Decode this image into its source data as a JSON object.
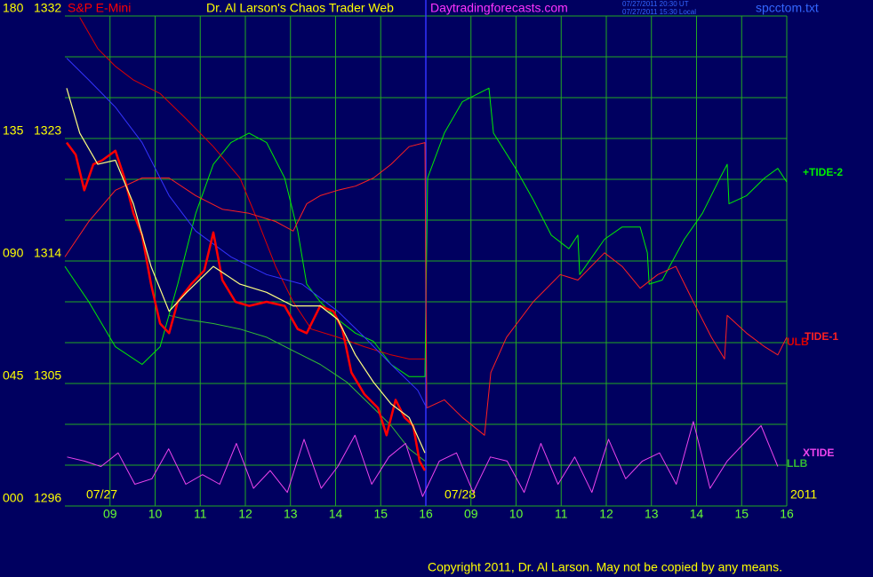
{
  "chart_data": {
    "type": "line",
    "title": "Dr. Al Larson's Chaos Trader Web",
    "source": "Daytradingforecasts.com",
    "timestamps": [
      "07/27/2011 20:30 UT",
      "07/27/2011 15:30 Local"
    ],
    "file": "spcctom.txt",
    "copyright": "Copyright 2011, Dr. Al Larson. May not be copied by any means.",
    "date_labels": [
      "07/27",
      "07/28",
      "2011"
    ],
    "xlim": [
      0,
      16
    ],
    "xticks": [
      {
        "value": 1,
        "label": "09"
      },
      {
        "value": 2,
        "label": "10"
      },
      {
        "value": 3,
        "label": "11"
      },
      {
        "value": 4,
        "label": "12"
      },
      {
        "value": 5,
        "label": "13"
      },
      {
        "value": 6,
        "label": "14"
      },
      {
        "value": 7,
        "label": "15"
      },
      {
        "value": 8,
        "label": "16"
      },
      {
        "value": 9,
        "label": "09"
      },
      10,
      11,
      12,
      13,
      14,
      15,
      16
    ],
    "session_break": 8,
    "ylim": [
      1296,
      1332
    ],
    "yticks": [
      1296,
      1305,
      1314,
      1323,
      1332
    ],
    "ygrid": [
      1296,
      1299,
      1302,
      1305,
      1308,
      1311,
      1314,
      1317,
      1320,
      1323,
      1326,
      1329,
      1332
    ],
    "y2lim": [
      0,
      180
    ],
    "y2ticks": [
      {
        "value": 0,
        "label": "000"
      },
      {
        "value": 45,
        "label": "045"
      },
      {
        "value": 90,
        "label": "090"
      },
      135,
      180
    ],
    "grid": true,
    "grid_color": "#22aa22",
    "series": [
      {
        "name": "+TIDE-2",
        "color": "#00ee00",
        "x": [
          0,
          0.53,
          1.12,
          1.71,
          2.11,
          2.5,
          2.9,
          3.29,
          3.68,
          4.08,
          4.47,
          4.87,
          5.16,
          5.36,
          5.66,
          6.05,
          6.44,
          6.84,
          7.23,
          7.63,
          7.98,
          8.04,
          8.41,
          8.81,
          9.4,
          9.5,
          9.99,
          10.38,
          10.78,
          11.17,
          11.37,
          11.41,
          11.96,
          12.35,
          12.75,
          12.91,
          12.95,
          13.24,
          13.73,
          14.13,
          14.52,
          14.68,
          14.72,
          15.11,
          15.51,
          15.8,
          16.0
        ],
        "values": [
          1313.6,
          1311.0,
          1307.7,
          1306.4,
          1307.7,
          1312.3,
          1317.5,
          1321.1,
          1322.7,
          1323.4,
          1322.7,
          1320.1,
          1316.2,
          1312.3,
          1311.0,
          1309.7,
          1308.7,
          1308.1,
          1306.4,
          1305.5,
          1305.5,
          1320.1,
          1323.4,
          1325.7,
          1326.7,
          1323.4,
          1320.8,
          1318.5,
          1315.9,
          1314.9,
          1315.9,
          1313.0,
          1315.6,
          1316.5,
          1316.5,
          1314.6,
          1312.3,
          1312.6,
          1315.6,
          1317.5,
          1320.1,
          1321.1,
          1318.2,
          1318.8,
          1320.1,
          1320.8,
          1319.8
        ]
      },
      {
        "name": "LLB",
        "color": "#33bb33",
        "x": [
          2.31,
          2.7,
          3.29,
          3.88,
          4.47,
          5.06,
          5.66,
          6.25,
          6.84,
          7.23,
          7.63,
          7.98
        ],
        "values": [
          1310.0,
          1309.7,
          1309.4,
          1309.0,
          1308.4,
          1307.4,
          1306.4,
          1305.1,
          1303.2,
          1301.9,
          1300.2,
          1299.3
        ]
      },
      {
        "name": "ULB",
        "color": "#dd0000",
        "x": [
          0.33,
          0.73,
          1.12,
          1.52,
          2.11,
          2.7,
          3.29,
          3.88,
          4.28,
          4.67,
          5.06,
          5.46,
          6.05,
          6.64,
          7.23,
          7.63,
          7.98
        ],
        "values": [
          1331.9,
          1329.6,
          1328.3,
          1327.3,
          1326.3,
          1324.4,
          1322.4,
          1320.1,
          1316.9,
          1313.6,
          1311.0,
          1309.0,
          1308.4,
          1307.7,
          1307.1,
          1306.8,
          1306.8
        ]
      },
      {
        "name": "TIDE-1",
        "color": "#ff2020",
        "x": [
          0,
          0.53,
          1.12,
          1.71,
          2.31,
          2.9,
          3.49,
          4.08,
          4.67,
          5.06,
          5.36,
          5.66,
          6.05,
          6.44,
          6.84,
          7.23,
          7.63,
          7.98,
          8.02,
          8.41,
          8.81,
          9.3,
          9.44,
          9.79,
          10.38,
          10.98,
          11.37,
          11.96,
          12.35,
          12.75,
          13.14,
          13.54,
          13.93,
          14.33,
          14.62,
          14.68,
          15.11,
          15.51,
          15.8,
          16.0
        ],
        "values": [
          1314.3,
          1316.9,
          1319.2,
          1320.1,
          1320.1,
          1318.8,
          1317.8,
          1317.5,
          1316.9,
          1316.2,
          1318.2,
          1318.8,
          1319.2,
          1319.5,
          1320.1,
          1321.1,
          1322.4,
          1322.7,
          1303.2,
          1303.8,
          1302.5,
          1301.2,
          1305.8,
          1308.4,
          1311.0,
          1313.0,
          1312.6,
          1314.6,
          1313.6,
          1312.0,
          1313.0,
          1313.6,
          1311.0,
          1308.4,
          1306.8,
          1310.0,
          1308.7,
          1307.7,
          1307.1,
          1308.4
        ]
      },
      {
        "name": "XTIDE",
        "color": "#ee44ee",
        "x": [
          0.05,
          0.43,
          0.8,
          1.18,
          1.55,
          1.93,
          2.3,
          2.68,
          3.05,
          3.43,
          3.8,
          4.18,
          4.55,
          4.93,
          5.3,
          5.68,
          6.05,
          6.43,
          6.8,
          7.18,
          7.55,
          7.93,
          8.3,
          8.68,
          9.05,
          9.43,
          9.8,
          10.18,
          10.55,
          10.93,
          11.3,
          11.68,
          12.05,
          12.43,
          12.8,
          13.18,
          13.55,
          13.93,
          14.3,
          14.68,
          15.05,
          15.43,
          15.8
        ],
        "values": [
          1299.6,
          1299.3,
          1298.9,
          1299.9,
          1297.6,
          1298.0,
          1300.2,
          1297.6,
          1298.3,
          1297.6,
          1300.6,
          1297.3,
          1298.6,
          1297.0,
          1300.9,
          1297.3,
          1298.9,
          1301.2,
          1297.6,
          1299.6,
          1300.6,
          1296.7,
          1299.3,
          1299.9,
          1297.0,
          1299.6,
          1299.3,
          1297.0,
          1300.6,
          1297.6,
          1299.6,
          1297.0,
          1300.9,
          1298.0,
          1299.3,
          1299.9,
          1297.6,
          1302.2,
          1297.3,
          1299.3,
          1300.6,
          1301.9,
          1298.9
        ]
      },
      {
        "color": "#3333ff",
        "x": [
          0.04,
          0.53,
          1.12,
          1.71,
          2.31,
          2.9,
          3.68,
          4.47,
          5.26,
          6.05,
          6.64,
          7.23,
          7.82,
          8.02
        ],
        "values": [
          1328.9,
          1327.3,
          1325.3,
          1322.7,
          1318.8,
          1316.2,
          1314.3,
          1313.0,
          1312.3,
          1310.3,
          1308.4,
          1306.4,
          1304.5,
          1303.2
        ]
      },
      {
        "name": "S&P E-Mini",
        "color": "#ff0000",
        "x": [
          0.04,
          0.24,
          0.43,
          0.63,
          0.83,
          1.12,
          1.32,
          1.52,
          1.71,
          1.91,
          2.11,
          2.31,
          2.5,
          2.8,
          3.09,
          3.29,
          3.49,
          3.78,
          4.08,
          4.47,
          4.87,
          5.16,
          5.36,
          5.66,
          5.95,
          6.15,
          6.35,
          6.64,
          6.94,
          7.13,
          7.33,
          7.53,
          7.72,
          7.86,
          7.98
        ],
        "values": [
          1322.7,
          1321.8,
          1319.2,
          1321.1,
          1321.4,
          1322.1,
          1320.1,
          1317.5,
          1315.9,
          1312.3,
          1309.4,
          1308.7,
          1311.0,
          1312.3,
          1313.3,
          1316.1,
          1312.6,
          1311.0,
          1310.7,
          1311.0,
          1310.7,
          1309.0,
          1308.7,
          1310.7,
          1310.3,
          1309.0,
          1305.8,
          1304.2,
          1303.2,
          1301.2,
          1303.8,
          1302.5,
          1301.9,
          1299.3,
          1298.6
        ]
      },
      {
        "color": "#ffff80",
        "x": [
          0.04,
          0.33,
          0.73,
          1.12,
          1.52,
          1.91,
          2.31,
          2.7,
          3.29,
          3.88,
          4.47,
          5.06,
          5.66,
          6.05,
          6.44,
          6.84,
          7.23,
          7.63,
          7.98
        ],
        "values": [
          1326.7,
          1323.4,
          1321.1,
          1321.4,
          1318.2,
          1313.6,
          1310.3,
          1311.7,
          1313.6,
          1312.3,
          1311.7,
          1310.7,
          1310.7,
          1309.7,
          1307.1,
          1305.1,
          1303.5,
          1302.5,
          1299.9
        ]
      }
    ]
  }
}
